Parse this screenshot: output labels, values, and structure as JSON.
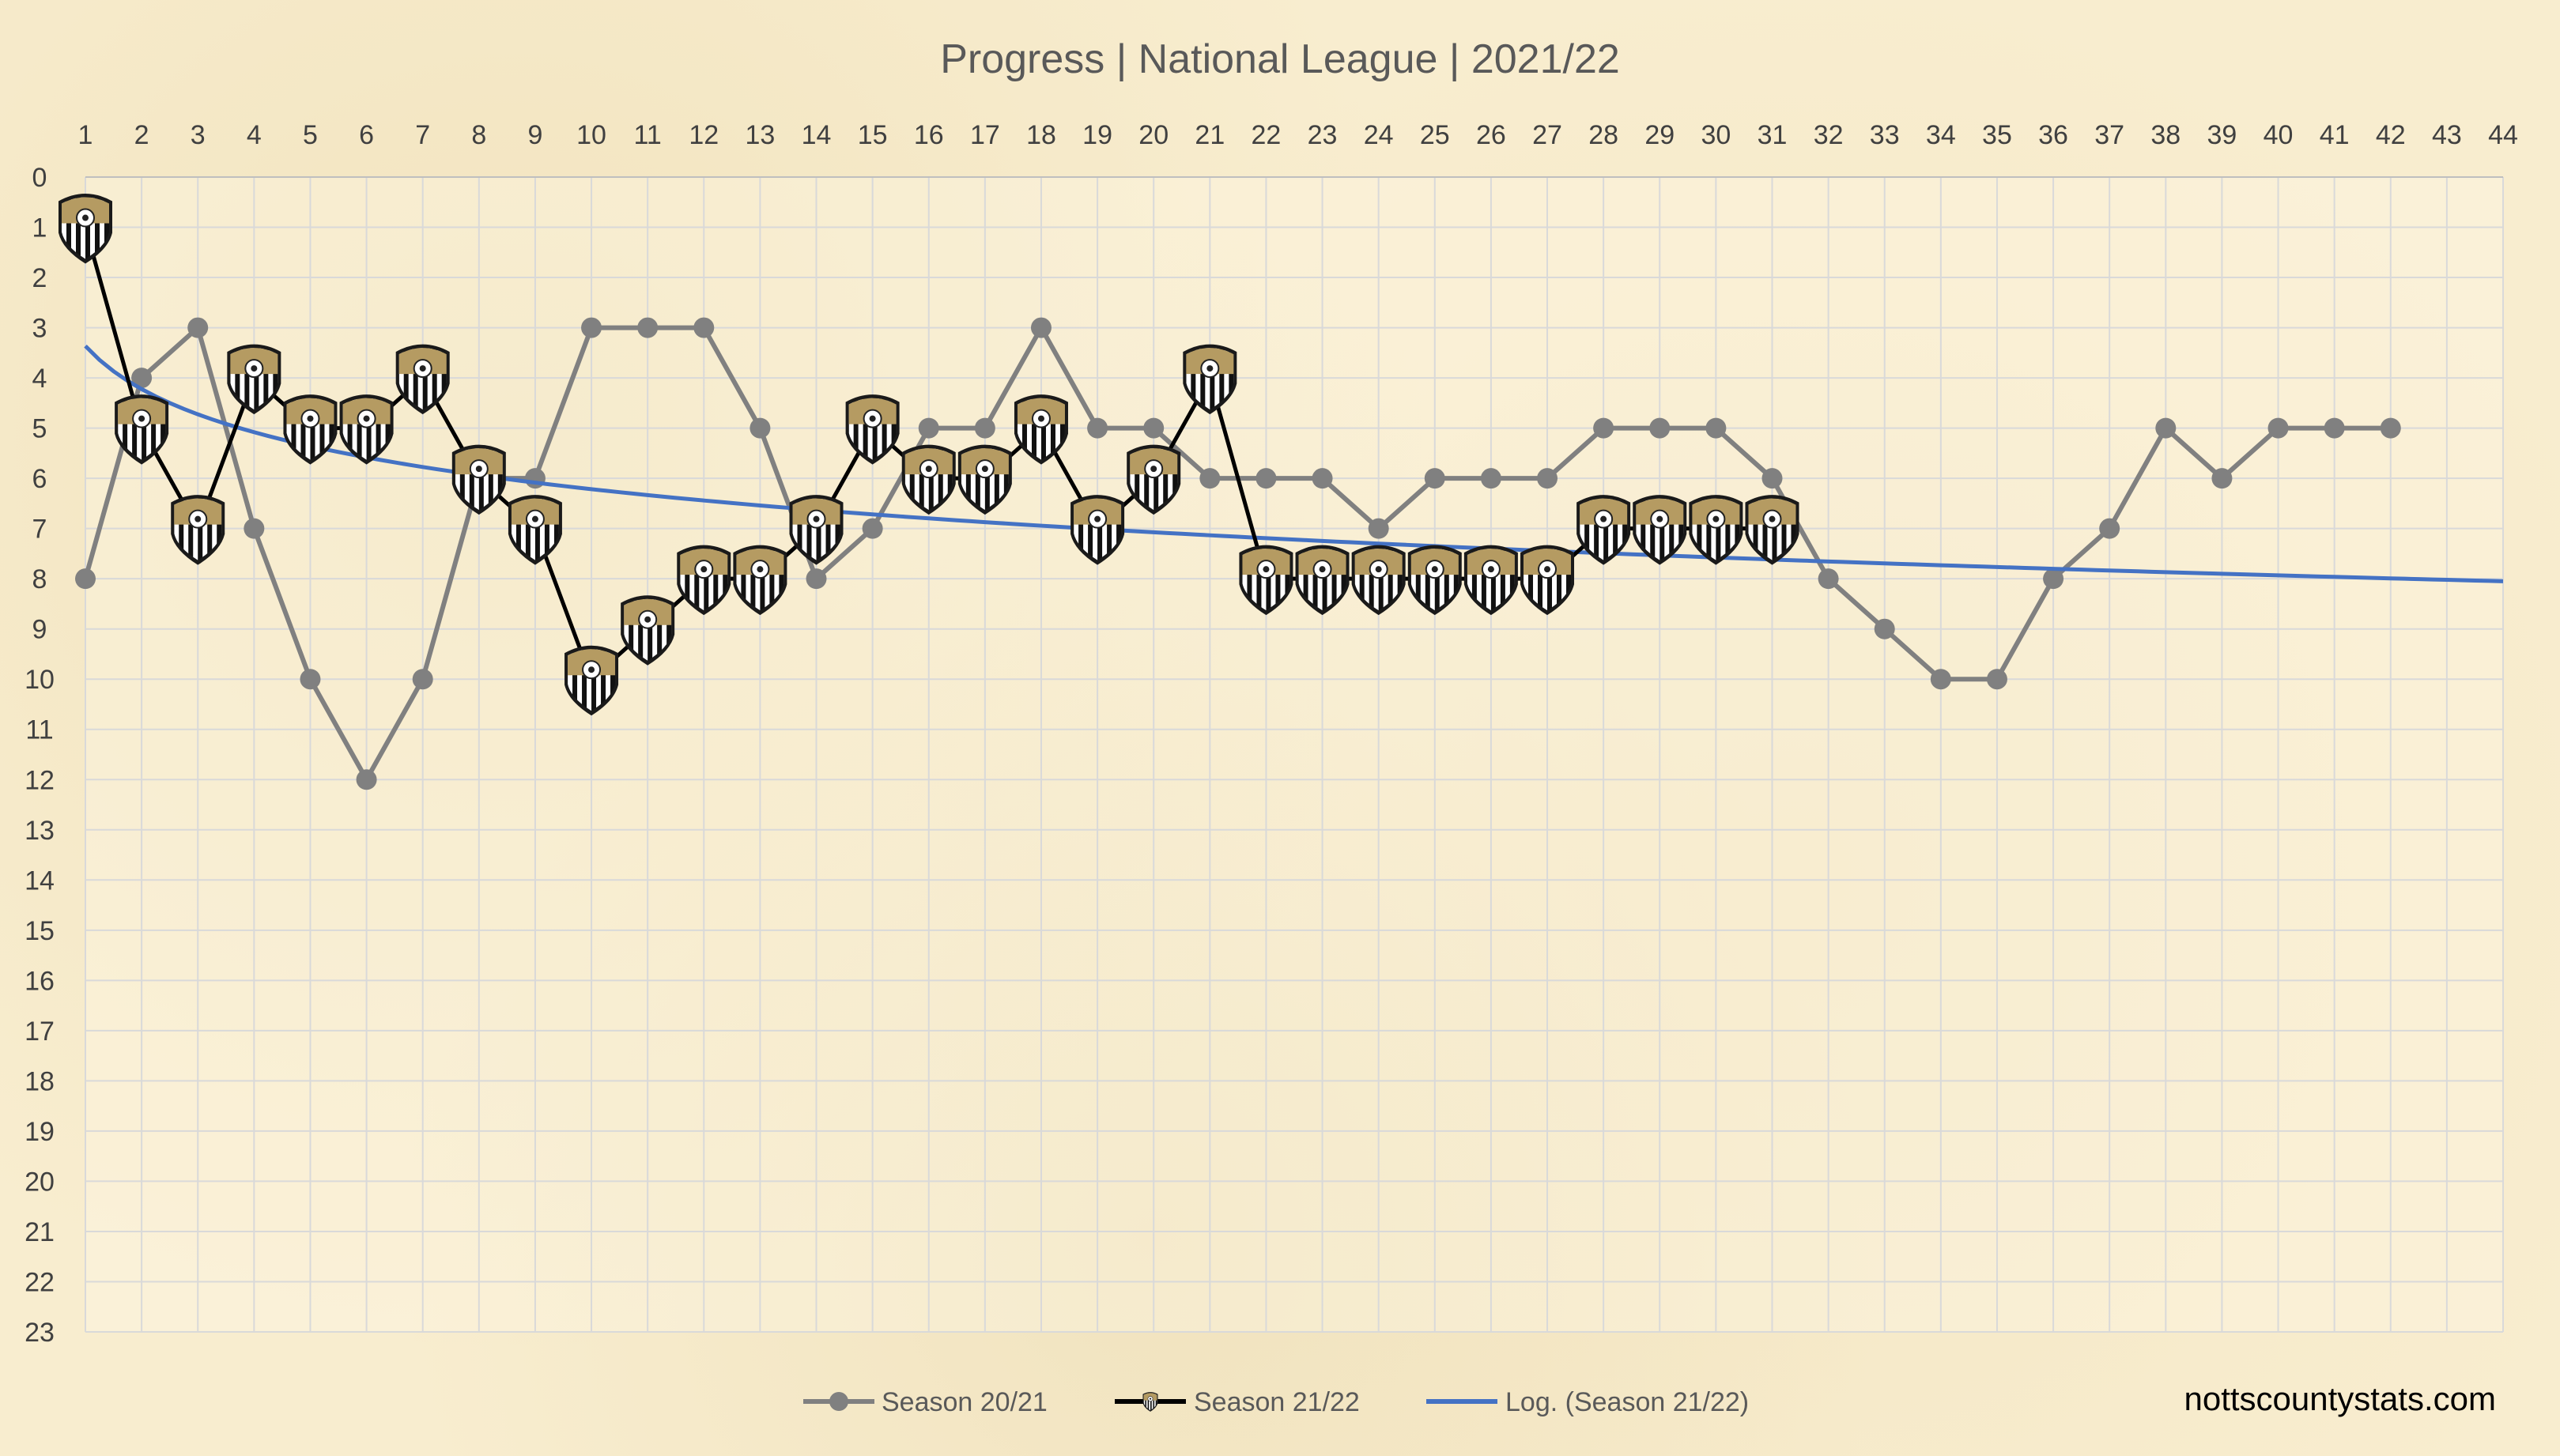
{
  "chart_data": {
    "type": "line",
    "title": "Progress | National League | 2021/22",
    "xlabel": "",
    "ylabel": "",
    "x_ticks": [
      1,
      2,
      3,
      4,
      5,
      6,
      7,
      8,
      9,
      10,
      11,
      12,
      13,
      14,
      15,
      16,
      17,
      18,
      19,
      20,
      21,
      22,
      23,
      24,
      25,
      26,
      27,
      28,
      29,
      30,
      31,
      32,
      33,
      34,
      35,
      36,
      37,
      38,
      39,
      40,
      41,
      42,
      43,
      44
    ],
    "y_ticks": [
      0,
      1,
      2,
      3,
      4,
      5,
      6,
      7,
      8,
      9,
      10,
      11,
      12,
      13,
      14,
      15,
      16,
      17,
      18,
      19,
      20,
      21,
      22,
      23
    ],
    "xlim": [
      1,
      44
    ],
    "ylim": [
      0,
      23
    ],
    "y_axis_inverted": true,
    "x_axis_position": "top",
    "grid": true,
    "legend_position": "bottom",
    "series": [
      {
        "name": "Season 20/21",
        "color": "#808080",
        "marker": "circle",
        "x": [
          1,
          2,
          3,
          4,
          5,
          6,
          7,
          8,
          9,
          10,
          11,
          12,
          13,
          14,
          15,
          16,
          17,
          18,
          19,
          20,
          21,
          22,
          23,
          24,
          25,
          26,
          27,
          28,
          29,
          30,
          31,
          32,
          33,
          34,
          35,
          36,
          37,
          38,
          39,
          40,
          41,
          42
        ],
        "values": [
          8,
          4,
          3,
          7,
          10,
          12,
          10,
          6,
          6,
          3,
          3,
          3,
          5,
          8,
          7,
          5,
          5,
          3,
          5,
          5,
          6,
          6,
          6,
          7,
          6,
          6,
          6,
          5,
          5,
          5,
          6,
          8,
          9,
          10,
          10,
          8,
          7,
          5,
          6,
          5,
          5,
          5
        ]
      },
      {
        "name": "Season 21/22",
        "color": "#000000",
        "marker": "club-crest",
        "x": [
          1,
          2,
          3,
          4,
          5,
          6,
          7,
          8,
          9,
          10,
          11,
          12,
          13,
          14,
          15,
          16,
          17,
          18,
          19,
          20,
          21,
          22,
          23,
          24,
          25,
          26,
          27,
          28,
          29,
          30,
          31
        ],
        "values": [
          1,
          5,
          7,
          4,
          5,
          5,
          4,
          6,
          7,
          10,
          9,
          8,
          8,
          7,
          5,
          6,
          6,
          5,
          7,
          6,
          4,
          8,
          8,
          8,
          8,
          8,
          8,
          7,
          7,
          7,
          7
        ]
      },
      {
        "name": "Log. (Season 21/22)",
        "color": "#4472c4",
        "marker": "none",
        "trendline": "logarithmic",
        "fit_of": "Season 21/22"
      }
    ]
  },
  "footer": {
    "watermark": "nottscountystats.com"
  }
}
